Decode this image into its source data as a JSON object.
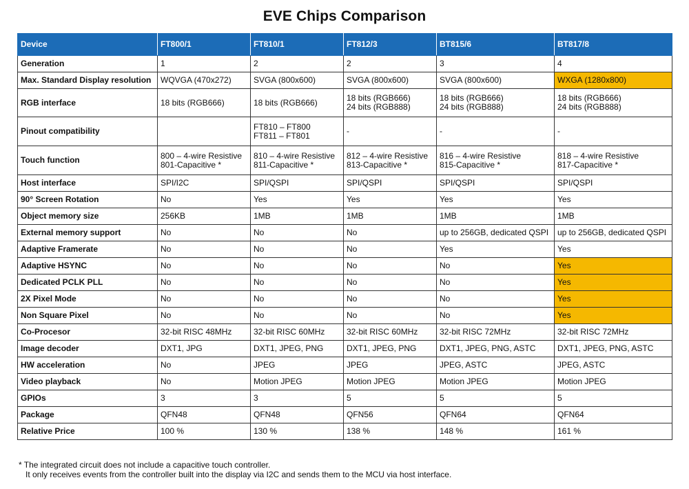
{
  "title": "EVE Chips Comparison",
  "columns": [
    "Device",
    "FT800/1",
    "FT810/1",
    "FT812/3",
    "BT815/6",
    "BT817/8"
  ],
  "rows": [
    {
      "feature": "Generation",
      "values": [
        "1",
        "2",
        "2",
        "3",
        "4"
      ],
      "highlight": []
    },
    {
      "feature": "Max. Standard Display resolution",
      "values": [
        "WQVGA (470x272)",
        "SVGA (800x600)",
        "SVGA (800x600)",
        "SVGA (800x600)",
        "WXGA (1280x800)"
      ],
      "highlight": [
        4
      ]
    },
    {
      "feature": "RGB interface",
      "values": [
        [
          "18 bits (RGB666)"
        ],
        [
          "18 bits (RGB666)"
        ],
        [
          "18 bits (RGB666)",
          "24 bits (RGB888)"
        ],
        [
          "18 bits (RGB666)",
          "24 bits (RGB888)"
        ],
        [
          "18 bits (RGB666)",
          "24 bits (RGB888)"
        ]
      ],
      "highlight": []
    },
    {
      "feature": "Pinout compatibility",
      "values": [
        [
          ""
        ],
        [
          "FT810 – FT800",
          "FT811 – FT801"
        ],
        [
          "-"
        ],
        [
          "-"
        ],
        [
          "-"
        ]
      ],
      "highlight": []
    },
    {
      "feature": "Touch function",
      "values": [
        [
          "800 – 4-wire Resistive",
          "801-Capacitive *"
        ],
        [
          "810 – 4-wire Resistive",
          "811-Capacitive *"
        ],
        [
          "812 – 4-wire Resistive",
          "813-Capacitive *"
        ],
        [
          "816 – 4-wire Resistive",
          "815-Capacitive *"
        ],
        [
          "818 – 4-wire Resistive",
          "817-Capacitive *"
        ]
      ],
      "highlight": []
    },
    {
      "feature": "Host interface",
      "values": [
        "SPI/I2C",
        "SPI/QSPI",
        "SPI/QSPI",
        "SPI/QSPI",
        "SPI/QSPI"
      ],
      "highlight": []
    },
    {
      "feature": "90° Screen Rotation",
      "values": [
        "No",
        "Yes",
        "Yes",
        "Yes",
        "Yes"
      ],
      "highlight": []
    },
    {
      "feature": "Object memory size",
      "values": [
        "256KB",
        "1MB",
        "1MB",
        "1MB",
        "1MB"
      ],
      "highlight": []
    },
    {
      "feature": "External memory support",
      "values": [
        "No",
        "No",
        "No",
        "up to 256GB, dedicated QSPI",
        "up to 256GB, dedicated QSPI"
      ],
      "highlight": []
    },
    {
      "feature": "Adaptive Framerate",
      "values": [
        "No",
        "No",
        "No",
        "Yes",
        "Yes"
      ],
      "highlight": []
    },
    {
      "feature": "Adaptive HSYNC",
      "values": [
        "No",
        "No",
        "No",
        "No",
        "Yes"
      ],
      "highlight": [
        4
      ]
    },
    {
      "feature": "Dedicated PCLK PLL",
      "values": [
        "No",
        "No",
        "No",
        "No",
        "Yes"
      ],
      "highlight": [
        4
      ]
    },
    {
      "feature": "2X Pixel Mode",
      "values": [
        "No",
        "No",
        "No",
        "No",
        "Yes"
      ],
      "highlight": [
        4
      ]
    },
    {
      "feature": "Non Square Pixel",
      "values": [
        "No",
        "No",
        "No",
        "No",
        "Yes"
      ],
      "highlight": [
        4
      ]
    },
    {
      "feature": "Co-Procesor",
      "values": [
        "32-bit RISC 48MHz",
        "32-bit RISC 60MHz",
        "32-bit RISC 60MHz",
        "32-bit RISC 72MHz",
        "32-bit RISC 72MHz"
      ],
      "highlight": []
    },
    {
      "feature": "Image decoder",
      "values": [
        "DXT1, JPG",
        "DXT1, JPEG, PNG",
        "DXT1, JPEG, PNG",
        "DXT1, JPEG, PNG, ASTC",
        "DXT1, JPEG, PNG, ASTC"
      ],
      "highlight": []
    },
    {
      "feature": "HW acceleration",
      "values": [
        "No",
        "JPEG",
        "JPEG",
        "JPEG, ASTC",
        "JPEG, ASTC"
      ],
      "highlight": []
    },
    {
      "feature": "Video playback",
      "values": [
        "No",
        "Motion JPEG",
        "Motion JPEG",
        "Motion JPEG",
        "Motion JPEG"
      ],
      "highlight": []
    },
    {
      "feature": "GPIOs",
      "values": [
        "3",
        "3",
        "5",
        "5",
        "5"
      ],
      "highlight": []
    },
    {
      "feature": "Package",
      "values": [
        "QFN48",
        "QFN48",
        "QFN56",
        "QFN64",
        "QFN64"
      ],
      "highlight": []
    },
    {
      "feature": "Relative Price",
      "values": [
        "100 %",
        "130 %",
        "138 %",
        "148 %",
        "161 %"
      ],
      "highlight": []
    }
  ],
  "footnote": {
    "line1": "* The integrated circuit does not include a capacitive touch controller.",
    "line2": "It only receives events from the controller built into the display via I2C and sends them to the MCU via host interface."
  },
  "colors": {
    "header_bg": "#1c6cb7",
    "highlight": "#f5b800"
  }
}
